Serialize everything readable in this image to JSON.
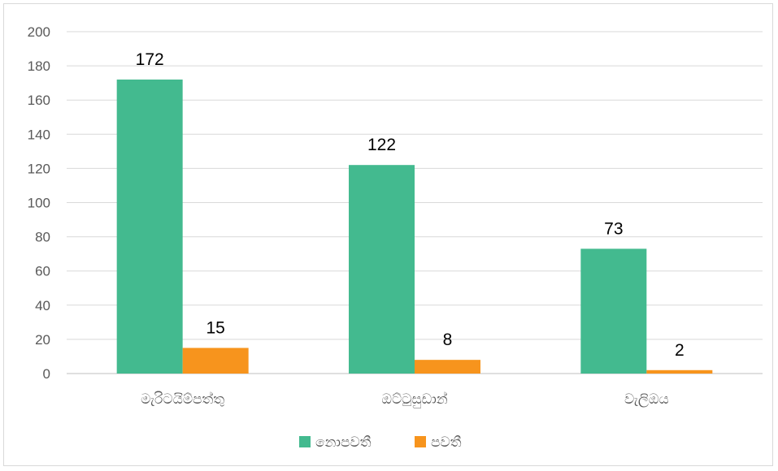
{
  "chart_data": {
    "type": "bar",
    "categories": [
      "මැරිටයිම්පත්තු",
      "ඔට්ටුසුඩාන්",
      "වැලිඔය"
    ],
    "series": [
      {
        "name": "නොපවතී",
        "values": [
          172,
          122,
          73
        ],
        "color": "#43BA8F"
      },
      {
        "name": "පවතී",
        "values": [
          15,
          8,
          2
        ],
        "color": "#F7941D"
      }
    ],
    "ylim": [
      0,
      200
    ],
    "yticks": [
      0,
      20,
      40,
      60,
      80,
      100,
      120,
      140,
      160,
      180,
      200
    ],
    "grid": true,
    "legend": "bottom",
    "title": "",
    "xlabel": "",
    "ylabel": ""
  }
}
